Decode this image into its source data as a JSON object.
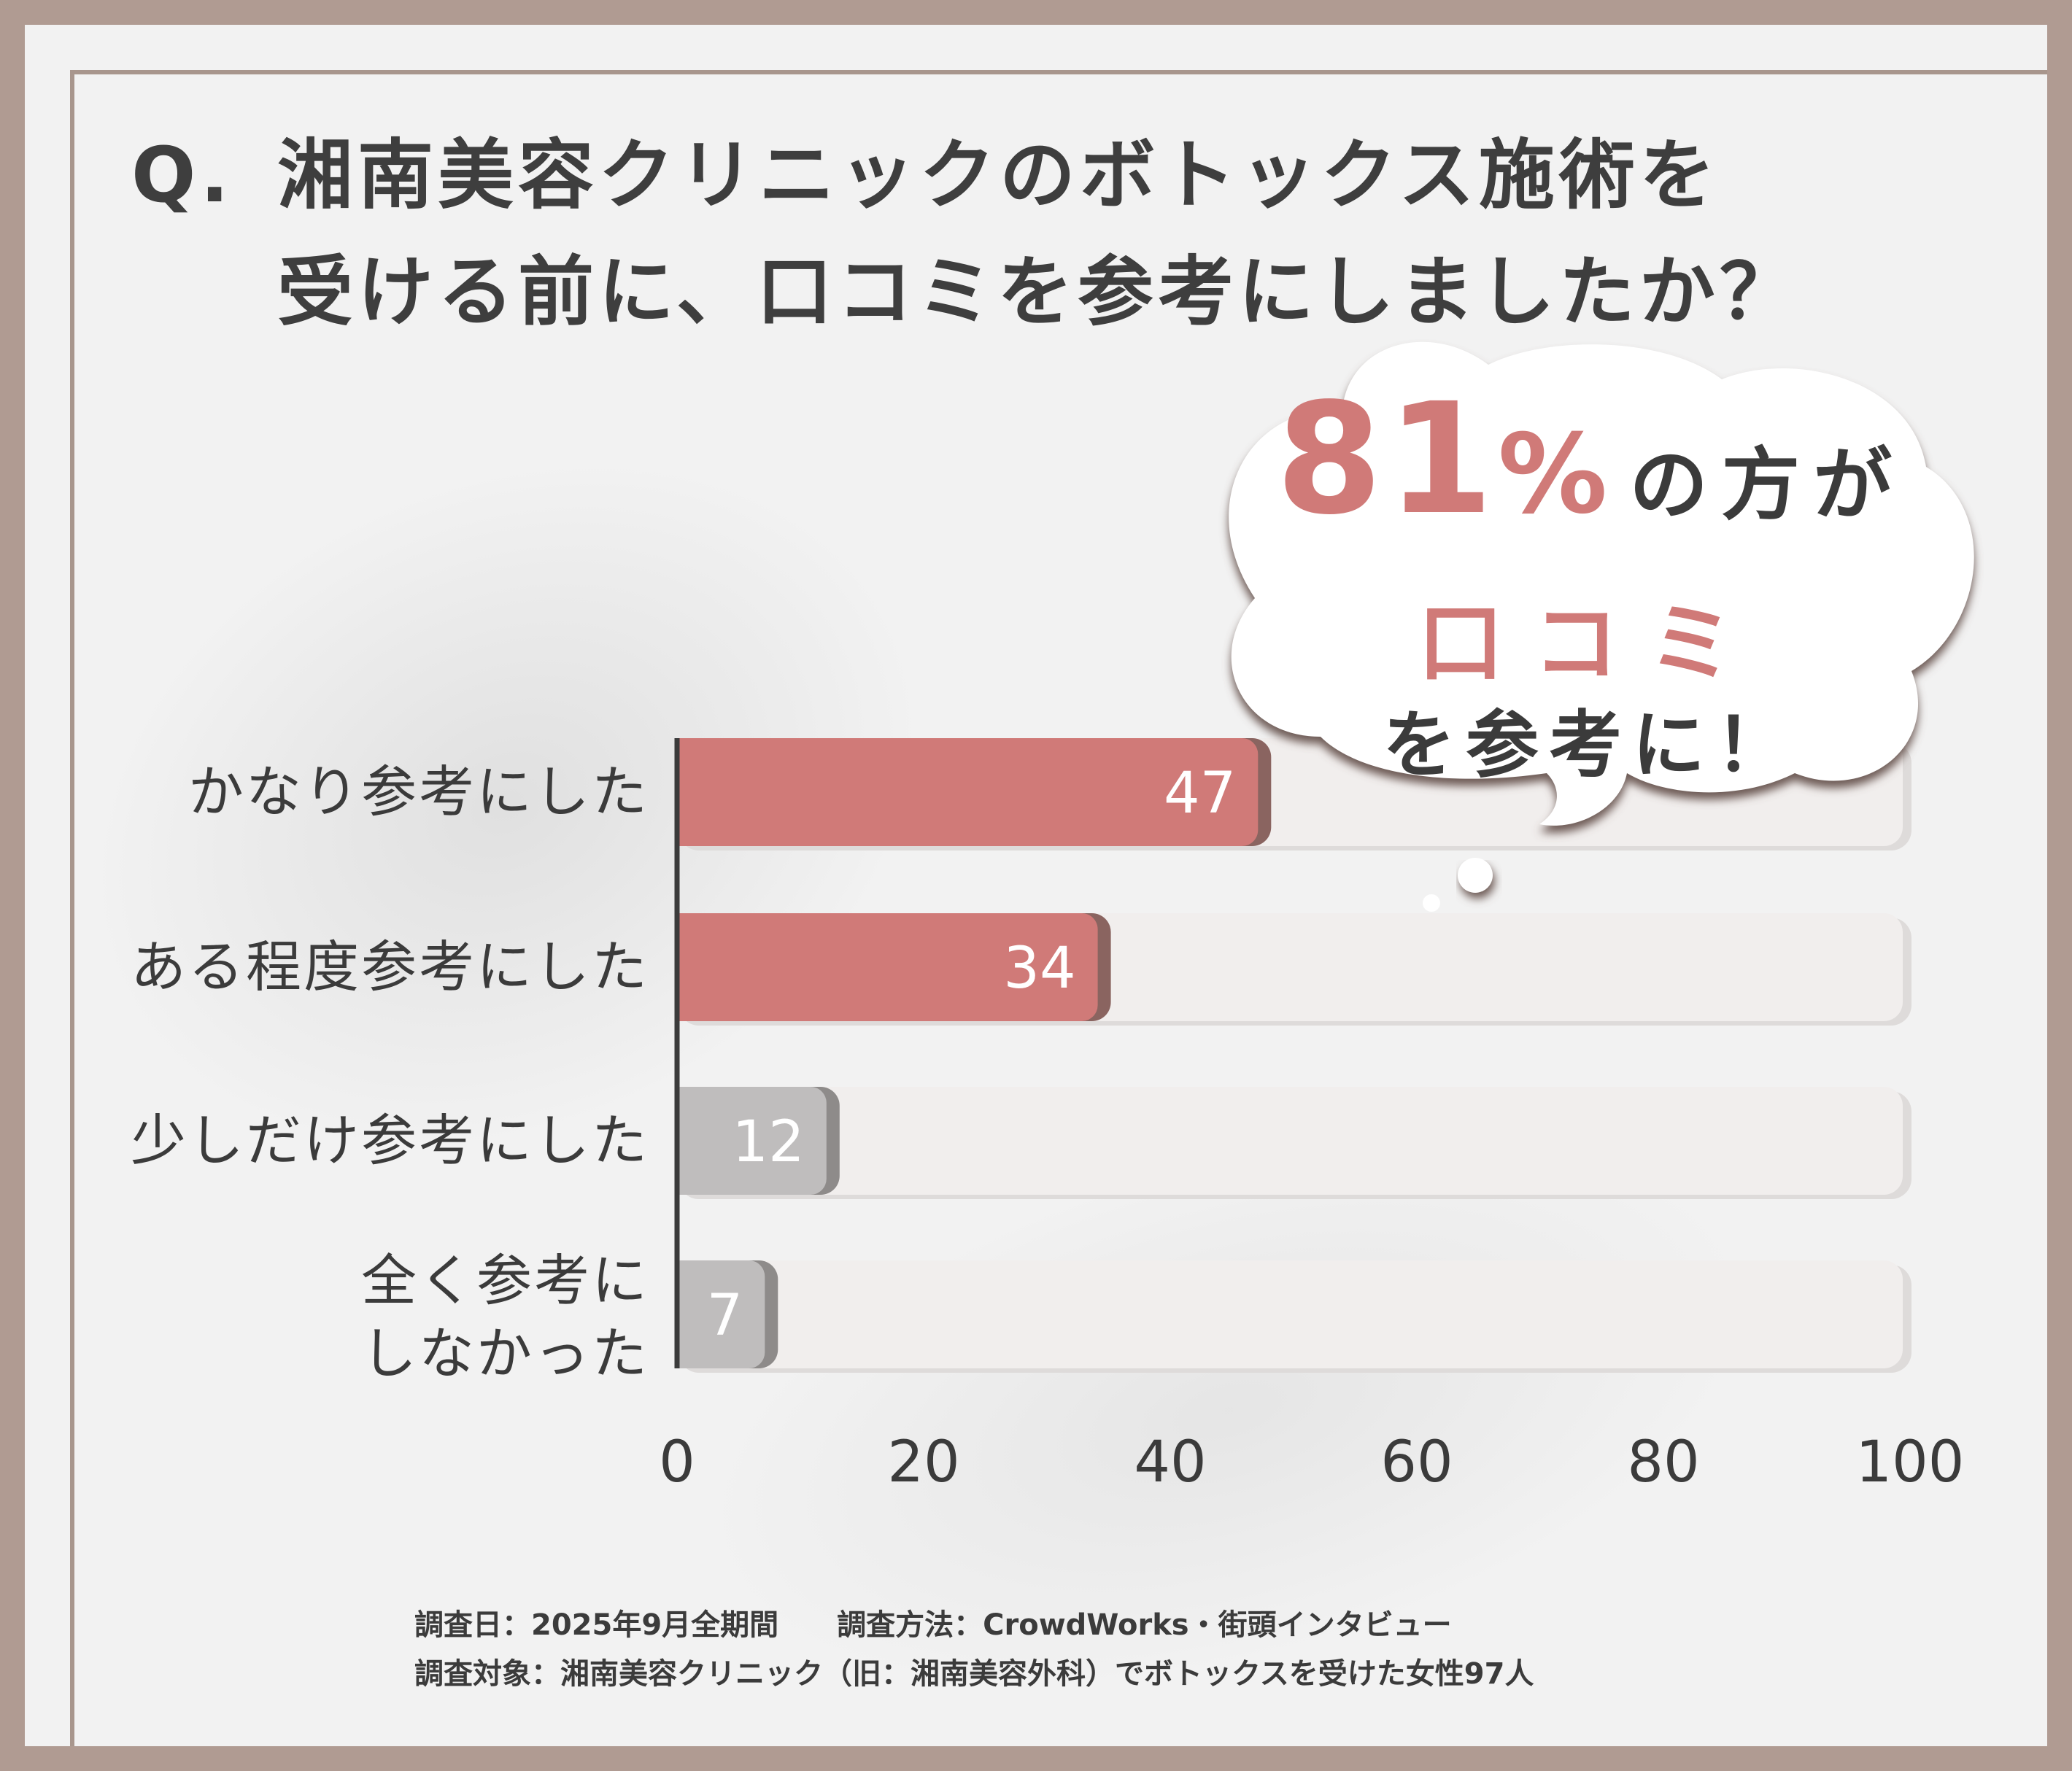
{
  "title": {
    "prefix": "Q.",
    "line1": "湘南美容クリニックのボトックス施術を",
    "line2": "受ける前に、口コミを参考にしましたか？"
  },
  "callout": {
    "percent_number": "81",
    "percent_sign": "%",
    "after_percent": "の方が",
    "highlight": "口コミ",
    "line3": "を参考に！"
  },
  "chart_data": {
    "type": "bar",
    "orientation": "horizontal",
    "categories": [
      "かなり参考にした",
      "ある程度参考にした",
      "少しだけ参考にした",
      "全く参考にしなかった"
    ],
    "category_lines": [
      [
        "かなり参考にした"
      ],
      [
        "ある程度参考にした"
      ],
      [
        "少しだけ参考にした"
      ],
      [
        "全く参考に",
        "しなかった"
      ]
    ],
    "values": [
      47,
      34,
      12,
      7
    ],
    "value_labels": [
      "47",
      "34",
      "12",
      "7"
    ],
    "xlim": [
      0,
      100
    ],
    "xticks": [
      "0",
      "20",
      "40",
      "60",
      "80",
      "100"
    ],
    "colors": {
      "highlight": "#d07a78",
      "highlight_shadow": "#8a6460",
      "muted": "#bfbdbd",
      "muted_shadow": "#8e8b8a",
      "track": "#f1eeed",
      "track_shadow": "#dedbda"
    }
  },
  "footer": {
    "line1": "調査日：2025年9月全期間　　調査方法：CrowdWorks・街頭インタビュー",
    "line2": "調査対象：湘南美容クリニック（旧：湘南美容外科）でボトックスを受けた女性97人"
  }
}
